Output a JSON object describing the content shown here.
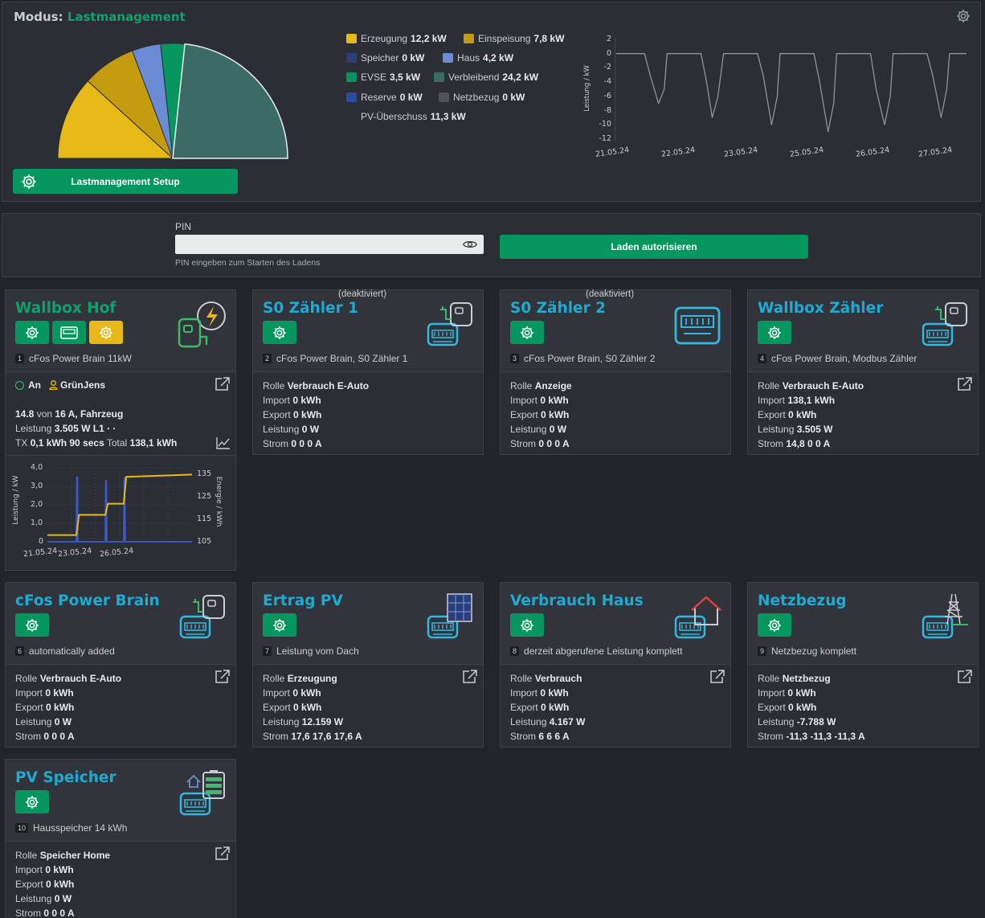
{
  "overview": {
    "mode_label": "Modus:",
    "mode_value": "Lastmanagement",
    "setup_button": "Lastmanagement Setup",
    "legend": [
      {
        "label": "Erzeugung",
        "value": "12,2 kW",
        "color": "#e6b818"
      },
      {
        "label": "Einspeisung",
        "value": "7,8 kW",
        "color": "#c59b10"
      },
      {
        "label": "Speicher",
        "value": "0 kW",
        "color": "#2a3f7a"
      },
      {
        "label": "Haus",
        "value": "4,2 kW",
        "color": "#6b8cd4"
      },
      {
        "label": "EVSE",
        "value": "3,5 kW",
        "color": "#069660"
      },
      {
        "label": "Verbleibend",
        "value": "24,2 kW",
        "color": "#3c6b66"
      },
      {
        "label": "Reserve",
        "value": "0 kW",
        "color": "#2a4aa5"
      },
      {
        "label": "Netzbezug",
        "value": "0 kW",
        "color": "#4f5358"
      }
    ],
    "pv_surplus_label": "PV-Überschuss",
    "pv_surplus_value": "11,3 kW"
  },
  "chart_data": [
    {
      "type": "pie",
      "title": "",
      "categories": [
        "Erzeugung",
        "Einspeisung",
        "Haus",
        "EVSE",
        "Verbleibend"
      ],
      "values": [
        12.2,
        7.8,
        4.2,
        3.5,
        24.2
      ],
      "colors": [
        "#e6b818",
        "#c59b10",
        "#6b8cd4",
        "#069660",
        "#3c6b66"
      ]
    },
    {
      "type": "line",
      "title": "",
      "ylabel": "Leistung / kW",
      "xlabel": "",
      "ylim": [
        -12,
        2
      ],
      "yticks": [
        "2",
        "0",
        "-2",
        "-4",
        "-6",
        "-8",
        "-10",
        "-12"
      ],
      "xticks": [
        "21.05.24",
        "22.05.24",
        "23.05.24",
        "25.05.24",
        "26.05.24",
        "27.05.24"
      ],
      "series": [
        {
          "x": [
            0,
            0.5,
            0.6,
            0.75,
            0.85,
            0.9,
            1.5,
            1.6,
            1.7,
            1.8,
            1.9,
            2.5,
            2.6,
            2.75,
            2.85,
            2.9,
            3.5,
            3.6,
            3.75,
            3.85,
            3.9,
            4.5,
            4.6,
            4.75,
            4.85,
            4.9,
            5.5,
            5.6,
            5.75,
            5.85,
            5.9,
            6.2
          ],
          "y": [
            0,
            0,
            -3,
            -7,
            -5,
            0,
            0,
            -4,
            -9,
            -6,
            0,
            0,
            -3,
            -10,
            -6,
            0,
            0,
            -4,
            -11,
            -7,
            0,
            0,
            -5,
            -10,
            -6,
            0,
            0,
            -3,
            -9,
            -5,
            0,
            0
          ]
        }
      ]
    },
    {
      "type": "line",
      "title": "",
      "ylabel": "Leistung / kW",
      "y2label": "Energie / kWh",
      "ylim": [
        0,
        4
      ],
      "y2lim": [
        105,
        138
      ],
      "yticks": [
        "4,0",
        "3,0",
        "2,0",
        "1,0",
        "0"
      ],
      "y2ticks": [
        "135",
        "125",
        "115",
        "105"
      ],
      "xticks": [
        "21.05.24",
        "23.05.24",
        "26.05.24"
      ],
      "series": [
        {
          "name": "Leistung",
          "x": [
            0,
            1.1,
            1.12,
            1.14,
            1.16,
            2.2,
            2.22,
            2.24,
            2.26,
            2.9,
            2.92,
            2.94,
            2.96,
            5.5
          ],
          "y": [
            0,
            0,
            3.5,
            3.5,
            0,
            0,
            3.3,
            3.3,
            0,
            0,
            3.4,
            3.5,
            0,
            0
          ]
        },
        {
          "name": "Energie",
          "x": [
            0,
            1.1,
            1.2,
            2.2,
            2.3,
            2.9,
            3.0,
            5.5
          ],
          "y": [
            108,
            108,
            117,
            117,
            122,
            122,
            134,
            135
          ]
        }
      ]
    }
  ],
  "pin": {
    "label": "PIN",
    "hint": "PIN eingeben zum Starten des Ladens",
    "authorize_button": "Laden autorisieren"
  },
  "cards": {
    "wallbox_hof": {
      "title": "Wallbox Hof",
      "num": "1",
      "subtitle": "cFos Power Brain 11kW",
      "status": "An",
      "user": "GrünJens",
      "l1_a": "14.8",
      "l1_b": "von",
      "l1_c": "16 A, Fahrzeug",
      "l2_a": "Leistung",
      "l2_b": "3.505 W L1 · ·",
      "l3_a": "TX",
      "l3_b": "0,1 kWh 90 secs",
      "l3_c": "Total",
      "l3_d": "138,1 kWh"
    },
    "s0_1": {
      "title": "S0 Zähler 1",
      "note": "(deaktiviert)",
      "num": "2",
      "subtitle": "cFos Power Brain, S0 Zähler 1",
      "rows": [
        [
          "Rolle",
          "Verbrauch E-Auto"
        ],
        [
          "Import",
          "0 kWh"
        ],
        [
          "Export",
          "0 kWh"
        ],
        [
          "Leistung",
          "0 W"
        ],
        [
          "Strom",
          "0 0 0 A"
        ]
      ]
    },
    "s0_2": {
      "title": "S0 Zähler 2",
      "note": "(deaktiviert)",
      "num": "3",
      "subtitle": "cFos Power Brain, S0 Zähler 2",
      "rows": [
        [
          "Rolle",
          "Anzeige"
        ],
        [
          "Import",
          "0 kWh"
        ],
        [
          "Export",
          "0 kWh"
        ],
        [
          "Leistung",
          "0 W"
        ],
        [
          "Strom",
          "0 0 0 A"
        ]
      ]
    },
    "wallbox_meter": {
      "title": "Wallbox Zähler",
      "num": "4",
      "subtitle": "cFos Power Brain, Modbus Zähler",
      "rows": [
        [
          "Rolle",
          "Verbrauch E-Auto"
        ],
        [
          "Import",
          "138,1 kWh"
        ],
        [
          "Export",
          "0 kWh"
        ],
        [
          "Leistung",
          "3.505 W"
        ],
        [
          "Strom",
          "14,8 0 0 A"
        ]
      ]
    },
    "power_brain": {
      "title": "cFos Power Brain",
      "num": "6",
      "subtitle": "automatically added",
      "rows": [
        [
          "Rolle",
          "Verbrauch E-Auto"
        ],
        [
          "Import",
          "0 kWh"
        ],
        [
          "Export",
          "0 kWh"
        ],
        [
          "Leistung",
          "0 W"
        ],
        [
          "Strom",
          "0 0 0 A"
        ]
      ]
    },
    "ertrag_pv": {
      "title": "Ertrag PV",
      "num": "7",
      "subtitle": "Leistung vom Dach",
      "rows": [
        [
          "Rolle",
          "Erzeugung"
        ],
        [
          "Import",
          "0 kWh"
        ],
        [
          "Export",
          "0 kWh"
        ],
        [
          "Leistung",
          "12.159 W"
        ],
        [
          "Strom",
          "17,6 17,6 17,6 A"
        ]
      ]
    },
    "verbrauch_haus": {
      "title": "Verbrauch Haus",
      "num": "8",
      "subtitle": "derzeit abgerufene Leistung komplett",
      "rows": [
        [
          "Rolle",
          "Verbrauch"
        ],
        [
          "Import",
          "0 kWh"
        ],
        [
          "Export",
          "0 kWh"
        ],
        [
          "Leistung",
          "4.167 W"
        ],
        [
          "Strom",
          "6 6 6 A"
        ]
      ]
    },
    "netzbezug": {
      "title": "Netzbezug",
      "num": "9",
      "subtitle": "Netzbezug komplett",
      "rows": [
        [
          "Rolle",
          "Netzbezug"
        ],
        [
          "Import",
          "0 kWh"
        ],
        [
          "Export",
          "0 kWh"
        ],
        [
          "Leistung",
          "-7.788 W"
        ],
        [
          "Strom",
          "-11,3 -11,3 -11,3 A"
        ]
      ]
    },
    "pv_speicher": {
      "title": "PV Speicher",
      "num": "10",
      "subtitle": "Hausspeicher 14 kWh",
      "rows": [
        [
          "Rolle",
          "Speicher Home"
        ],
        [
          "Import",
          "0 kWh"
        ],
        [
          "Export",
          "0 kWh"
        ],
        [
          "Leistung",
          "0 W"
        ],
        [
          "Strom",
          "0 0 0 A"
        ]
      ]
    }
  }
}
